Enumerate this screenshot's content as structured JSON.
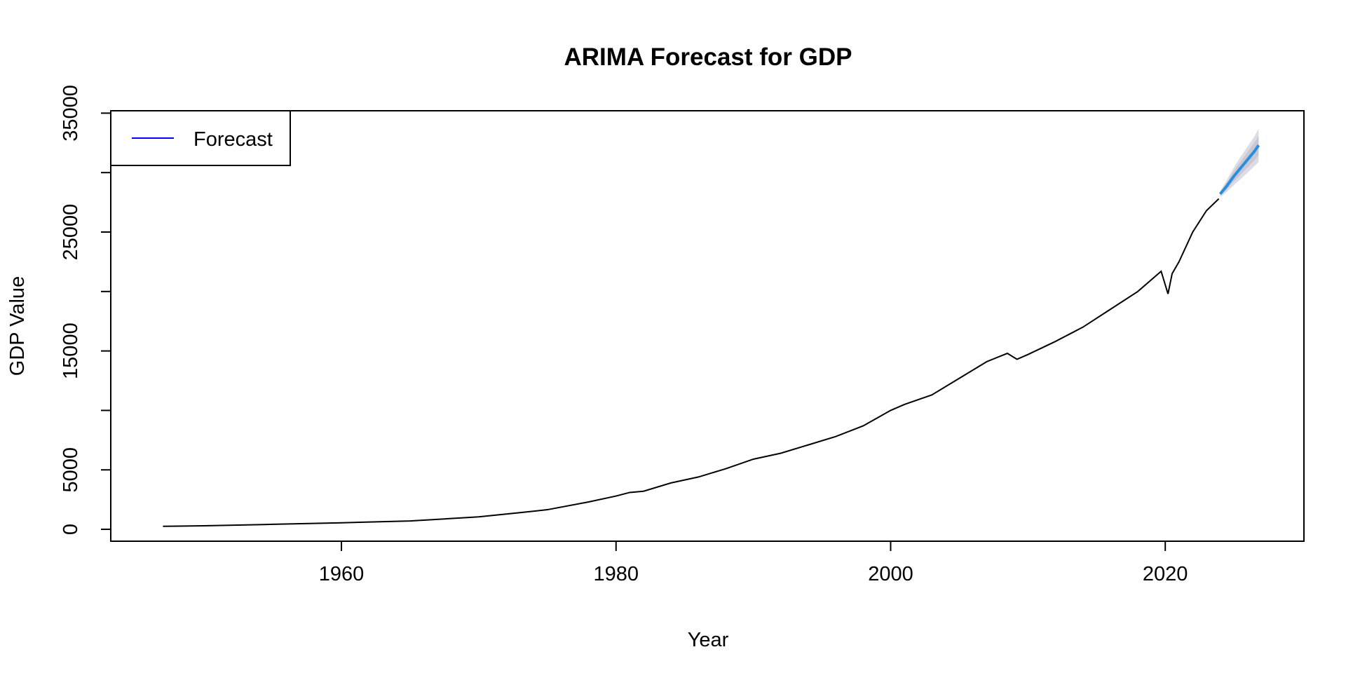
{
  "chart_data": {
    "type": "line",
    "title": "ARIMA Forecast for GDP",
    "xlabel": "Year",
    "ylabel": "GDP Value",
    "xlim": [
      1943.2,
      2030.1
    ],
    "ylim": [
      -1000,
      35200
    ],
    "x_ticks": [
      1960,
      1980,
      2000,
      2020
    ],
    "y_ticks": [
      0,
      5000,
      10000,
      15000,
      20000,
      25000,
      30000,
      35000
    ],
    "x_tick_labels": [
      "1960",
      "1980",
      "2000",
      "2020"
    ],
    "y_tick_labels": [
      "0",
      "5000",
      "15000",
      "25000",
      "35000"
    ],
    "y_tick_labels_at": [
      0,
      5000,
      15000,
      25000,
      35000
    ],
    "legend": {
      "placement": "top-left",
      "entries": [
        {
          "label": "Forecast",
          "color": "#0000ff"
        }
      ]
    },
    "series": [
      {
        "role": "history",
        "color": "#000000",
        "x": [
          1947,
          1950,
          1955,
          1960,
          1965,
          1970,
          1973,
          1975,
          1978,
          1980,
          1981,
          1982,
          1984,
          1986,
          1988,
          1990,
          1992,
          1994,
          1996,
          1998,
          2000,
          2001,
          2003,
          2005,
          2007,
          2008.5,
          2009.2,
          2010,
          2012,
          2014,
          2016,
          2018,
          2019.7,
          2020.2,
          2020.5,
          2021,
          2022,
          2023,
          2023.9
        ],
        "y": [
          250,
          300,
          420,
          550,
          700,
          1050,
          1400,
          1650,
          2300,
          2800,
          3100,
          3200,
          3900,
          4400,
          5100,
          5900,
          6400,
          7100,
          7800,
          8700,
          10000,
          10500,
          11300,
          12700,
          14100,
          14800,
          14300,
          14700,
          15800,
          17000,
          18500,
          20000,
          21700,
          19800,
          21500,
          22500,
          25000,
          26800,
          27800
        ]
      },
      {
        "role": "forecast",
        "color": "#2a8ee0",
        "band_inner_color": "#c8c8d4",
        "band_outer_color": "#dcdce4",
        "x": [
          2024.0,
          2024.5,
          2025.0,
          2025.5,
          2026.0,
          2026.5,
          2026.8
        ],
        "y": [
          28200,
          28900,
          29700,
          30400,
          31100,
          31800,
          32300
        ],
        "lower80": [
          28050,
          28600,
          29250,
          29850,
          30450,
          31050,
          31450
        ],
        "upper80": [
          28350,
          29200,
          30150,
          30950,
          31750,
          32550,
          33100
        ],
        "lower95": [
          27950,
          28400,
          28950,
          29450,
          30000,
          30550,
          30900
        ],
        "upper95": [
          28450,
          29400,
          30450,
          31350,
          32200,
          33050,
          33700
        ]
      }
    ]
  }
}
